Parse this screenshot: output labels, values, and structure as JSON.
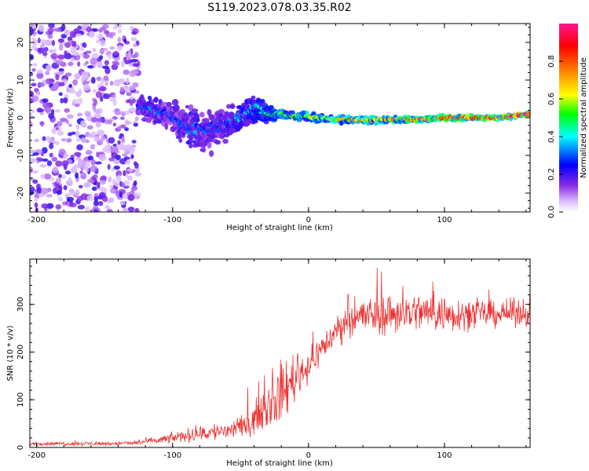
{
  "title": "S119.2023.078.03.35.R02",
  "chart_data": [
    {
      "type": "heatmap",
      "title": "S119.2023.078.03.35.R02",
      "xlabel": "Height of straight line (km)",
      "ylabel": "Frequency (Hz)",
      "xlim": [
        -205,
        163
      ],
      "ylim": [
        -25,
        25
      ],
      "xticks": [
        -200,
        -100,
        0,
        100
      ],
      "yticks": [
        -20,
        -10,
        0,
        10,
        20
      ],
      "colorbar": {
        "label": "Normalized spectral amplitude",
        "range": [
          0,
          1
        ],
        "ticks": [
          0.0,
          0.2,
          0.4,
          0.6,
          0.8
        ],
        "tick_labels": [
          "0.0",
          "0.2",
          "0.4",
          "0.6",
          "0.8"
        ],
        "colors": [
          "#ffffff",
          "#8a2be2",
          "#0000ff",
          "#00ffff",
          "#00ff00",
          "#ffff00",
          "#ff8000",
          "#ff0000",
          "#ff1493"
        ]
      },
      "noise_region": {
        "x_range": [
          -205,
          -125
        ],
        "freq_range": [
          -25,
          25
        ],
        "amplitude_range": [
          0.05,
          0.2
        ]
      },
      "signal_track": {
        "x": [
          -125,
          -115,
          -105,
          -95,
          -85,
          -75,
          -65,
          -55,
          -45,
          -38,
          -30,
          -20,
          -10,
          0,
          20,
          40,
          60,
          80,
          100,
          120,
          140,
          163
        ],
        "freq": [
          3,
          2,
          1,
          -1,
          -3,
          -4,
          -2,
          -1,
          1,
          3,
          1,
          1,
          0.5,
          0.3,
          -0.5,
          -0.6,
          -0.5,
          -0.5,
          0,
          0,
          0,
          1
        ],
        "spread": [
          3,
          4,
          5,
          6,
          7,
          7,
          6,
          5,
          6,
          5,
          3,
          1.5,
          1.2,
          1.2,
          1,
          1,
          0.9,
          0.8,
          0.7,
          0.6,
          0.6,
          0.8
        ],
        "amplitude": [
          0.3,
          0.35,
          0.3,
          0.3,
          0.35,
          0.3,
          0.3,
          0.35,
          0.4,
          0.4,
          0.5,
          0.55,
          0.55,
          0.6,
          0.65,
          0.7,
          0.75,
          0.8,
          0.9,
          0.95,
          0.97,
          0.95
        ]
      }
    },
    {
      "type": "line",
      "xlabel": "Height of straight line (km)",
      "ylabel": "SNR (10 * v/v)",
      "xlim": [
        -205,
        163
      ],
      "ylim": [
        0,
        395
      ],
      "xticks": [
        -200,
        -100,
        0,
        100
      ],
      "yticks": [
        0,
        100,
        200,
        300
      ],
      "series": [
        {
          "name": "SNR",
          "color": "#ee3333",
          "envelope_x": [
            -205,
            -150,
            -130,
            -110,
            -90,
            -70,
            -50,
            -40,
            -30,
            -20,
            -10,
            0,
            10,
            20,
            30,
            40,
            60,
            80,
            100,
            120,
            140,
            163
          ],
          "envelope_mean": [
            8,
            8,
            9,
            15,
            25,
            32,
            40,
            60,
            90,
            110,
            150,
            170,
            210,
            240,
            275,
            275,
            280,
            285,
            280,
            280,
            280,
            285
          ],
          "envelope_amp": [
            6,
            6,
            7,
            12,
            20,
            28,
            35,
            45,
            70,
            90,
            80,
            50,
            45,
            45,
            55,
            60,
            65,
            60,
            60,
            45,
            40,
            45
          ]
        }
      ]
    }
  ]
}
